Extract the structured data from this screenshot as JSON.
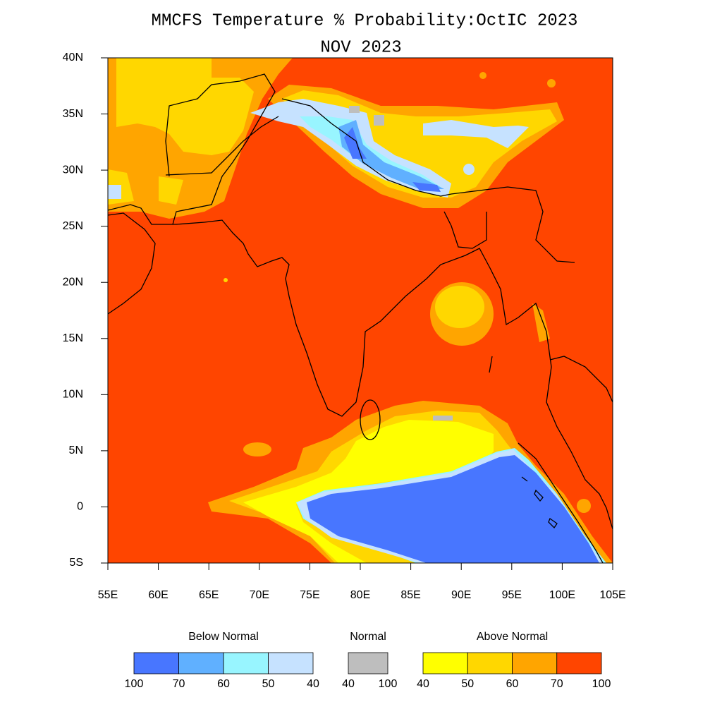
{
  "title": "MMCFS Temperature % Probability:OctIC 2023",
  "subtitle": "NOV 2023",
  "map": {
    "lon_range": [
      55,
      105
    ],
    "lat_range": [
      -5,
      40
    ],
    "xticks": [
      {
        "value": 55,
        "label": "55E"
      },
      {
        "value": 60,
        "label": "60E"
      },
      {
        "value": 65,
        "label": "65E"
      },
      {
        "value": 70,
        "label": "70E"
      },
      {
        "value": 75,
        "label": "75E"
      },
      {
        "value": 80,
        "label": "80E"
      },
      {
        "value": 85,
        "label": "85E"
      },
      {
        "value": 90,
        "label": "90E"
      },
      {
        "value": 95,
        "label": "95E"
      },
      {
        "value": 100,
        "label": "100E"
      },
      {
        "value": 105,
        "label": "105E"
      }
    ],
    "yticks": [
      {
        "value": 40,
        "label": "40N"
      },
      {
        "value": 35,
        "label": "35N"
      },
      {
        "value": 30,
        "label": "30N"
      },
      {
        "value": 25,
        "label": "25N"
      },
      {
        "value": 20,
        "label": "20N"
      },
      {
        "value": 15,
        "label": "15N"
      },
      {
        "value": 10,
        "label": "10N"
      },
      {
        "value": 5,
        "label": "5N"
      },
      0,
      {
        "value": -5,
        "label": "5S"
      }
    ]
  },
  "legend": [
    {
      "title": "Below Normal",
      "colors": [
        "#4876ff",
        "#60b0ff",
        "#98f5ff",
        "#c6e2ff"
      ],
      "levels": [
        100,
        70,
        60,
        50,
        40
      ]
    },
    {
      "title": "Normal",
      "colors": [
        "#bebebe"
      ],
      "levels": [
        40,
        100
      ]
    },
    {
      "title": "Above Normal",
      "colors": [
        "#ffff00",
        "#ffd700",
        "#ffa500",
        "#ff4500"
      ],
      "levels": [
        40,
        50,
        60,
        70,
        100
      ]
    }
  ]
}
